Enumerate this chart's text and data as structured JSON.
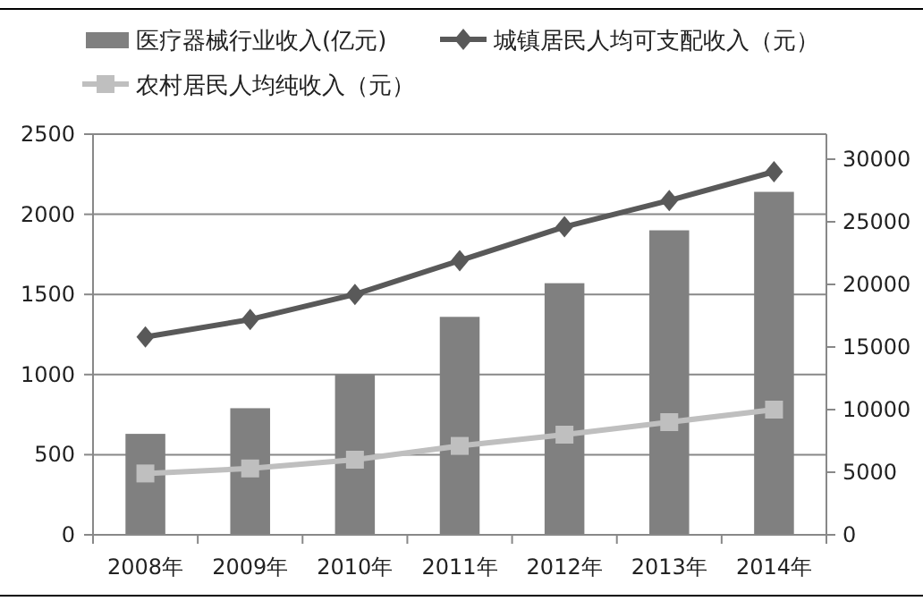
{
  "chart_data": {
    "type": "bar",
    "categories": [
      "2008年",
      "2009年",
      "2010年",
      "2011年",
      "2012年",
      "2013年",
      "2014年"
    ],
    "series": [
      {
        "name": "医疗器械行业收入(亿元)",
        "color": "#808080",
        "values": [
          630,
          790,
          1000,
          1360,
          1570,
          1900,
          2140
        ]
      },
      {
        "name": "城镇居民人均可支配收入（元）",
        "type": "line",
        "axis": "y2",
        "color": "#595959",
        "marker": "diamond",
        "values": [
          15800,
          17200,
          19200,
          21900,
          24600,
          26700,
          29000
        ]
      },
      {
        "name": "农村居民人均纯收入（元）",
        "type": "line",
        "axis": "y2",
        "color": "#bfbfbf",
        "marker": "square",
        "values": [
          4900,
          5300,
          6000,
          7100,
          8000,
          9000,
          10000
        ]
      }
    ],
    "ylim": [
      0,
      2500
    ],
    "yticks": [
      0,
      500,
      1000,
      1500,
      2000,
      2500
    ],
    "y2lim": [
      0,
      32000
    ],
    "y2ticks": [
      0,
      5000,
      10000,
      15000,
      20000,
      25000,
      30000
    ],
    "grid": "y",
    "legend": "top"
  }
}
